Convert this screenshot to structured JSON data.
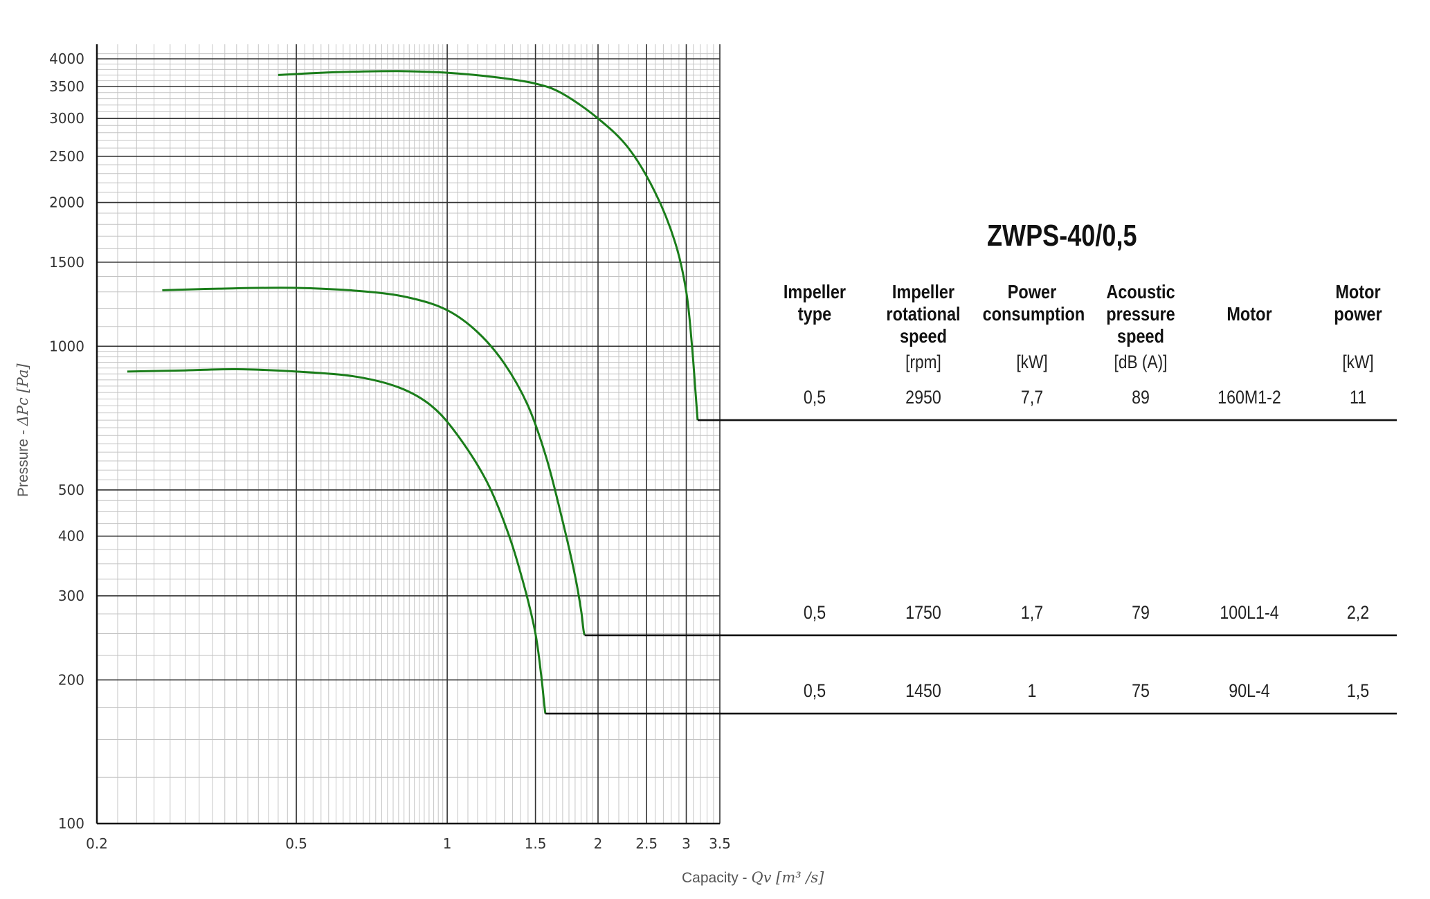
{
  "title": "ZWPS-40/0,5",
  "table": {
    "columns": [
      {
        "key": "type",
        "lines": [
          "Impeller",
          "type"
        ],
        "unit": ""
      },
      {
        "key": "speed",
        "lines": [
          "Impeller",
          "rotational",
          "speed"
        ],
        "unit": "[rpm]"
      },
      {
        "key": "power",
        "lines": [
          "Power",
          "consumption"
        ],
        "unit": "[kW]"
      },
      {
        "key": "acoustic",
        "lines": [
          "Acoustic",
          "pressure",
          "speed"
        ],
        "unit": "[dB (A)]"
      },
      {
        "key": "motor",
        "lines": [
          "Motor"
        ],
        "unit": ""
      },
      {
        "key": "motor_power",
        "lines": [
          "Motor",
          "power"
        ],
        "unit": "[kW]"
      }
    ],
    "rows": [
      {
        "type": "0,5",
        "speed": "2950",
        "power": "7,7",
        "acoustic": "89",
        "motor": "160M1-2",
        "motor_power": "11"
      },
      {
        "type": "0,5",
        "speed": "1750",
        "power": "1,7",
        "acoustic": "79",
        "motor": "100L1-4",
        "motor_power": "2,2"
      },
      {
        "type": "0,5",
        "speed": "1450",
        "power": "1",
        "acoustic": "75",
        "motor": "90L-4",
        "motor_power": "1,5"
      }
    ]
  },
  "chart_data": {
    "type": "line",
    "xscale": "log",
    "yscale": "log",
    "xlim": [
      0.2,
      3.5
    ],
    "ylim": [
      100,
      4000
    ],
    "xlabel_prefix": "Capacity - ",
    "xlabel_math": "Qv [m³ /s]",
    "ylabel_prefix": "Pressure - ",
    "ylabel_math": "ΔPc [Pa]",
    "xticks": [
      0.2,
      0.5,
      1,
      1.5,
      2,
      2.5,
      3,
      3.5
    ],
    "xtick_labels": [
      "0.2",
      "0.5",
      "1",
      "1.5",
      "2",
      "2.5",
      "3",
      "3.5"
    ],
    "yticks": [
      100,
      200,
      300,
      400,
      500,
      1000,
      1500,
      2000,
      2500,
      3000,
      3500,
      4000
    ],
    "ytick_labels": [
      "100",
      "200",
      "300",
      "400",
      "500",
      "1000",
      "1500",
      "2000",
      "2500",
      "3000",
      "3500",
      "4000"
    ],
    "grid": true,
    "line_color": "#1a7d1a",
    "series": [
      {
        "row": 0,
        "leader_y": 700,
        "x": [
          0.46,
          0.6,
          0.8,
          1.0,
          1.25,
          1.5,
          1.7,
          2.0,
          2.3,
          2.6,
          2.85,
          3.0,
          3.08,
          3.13,
          3.16
        ],
        "y": [
          3700,
          3750,
          3770,
          3740,
          3660,
          3550,
          3380,
          3000,
          2600,
          2100,
          1650,
          1300,
          1000,
          800,
          700
        ]
      },
      {
        "row": 1,
        "leader_y": 248,
        "x": [
          0.27,
          0.35,
          0.5,
          0.7,
          0.85,
          1.0,
          1.15,
          1.3,
          1.45,
          1.58,
          1.7,
          1.8,
          1.85,
          1.87,
          1.88
        ],
        "y": [
          1310,
          1320,
          1325,
          1300,
          1260,
          1190,
          1070,
          920,
          750,
          580,
          430,
          330,
          280,
          255,
          248
        ]
      },
      {
        "row": 2,
        "leader_y": 170,
        "x": [
          0.23,
          0.3,
          0.38,
          0.5,
          0.65,
          0.8,
          0.93,
          1.05,
          1.2,
          1.33,
          1.43,
          1.5,
          1.54,
          1.56,
          1.57
        ],
        "y": [
          885,
          890,
          895,
          885,
          865,
          820,
          750,
          650,
          520,
          400,
          310,
          250,
          205,
          180,
          170
        ]
      }
    ]
  }
}
